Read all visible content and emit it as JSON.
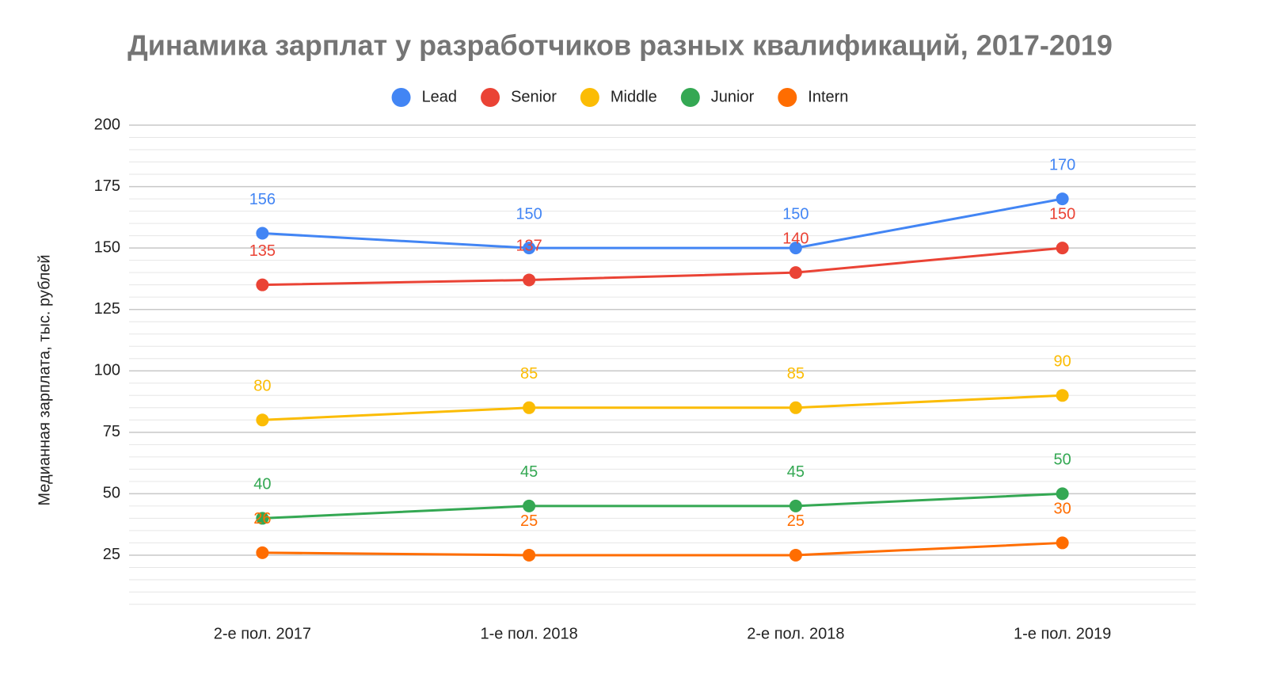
{
  "chart_data": {
    "type": "line",
    "title": "Динамика зарплат у разработчиков разных квалификаций, 2017-2019",
    "y_label": "Медианная зарплата, тыс. рублей",
    "categories": [
      "2-е пол. 2017",
      "1-е пол. 2018",
      "2-е пол. 2018",
      "1-е пол. 2019"
    ],
    "series": [
      {
        "name": "Lead",
        "color": "#4285f4",
        "values": [
          156,
          150,
          150,
          170
        ]
      },
      {
        "name": "Senior",
        "color": "#ea4335",
        "values": [
          135,
          137,
          140,
          150
        ]
      },
      {
        "name": "Middle",
        "color": "#fbbc04",
        "values": [
          80,
          85,
          85,
          90
        ]
      },
      {
        "name": "Junior",
        "color": "#34a853",
        "values": [
          40,
          45,
          45,
          50
        ]
      },
      {
        "name": "Intern",
        "color": "#ff6d01",
        "values": [
          26,
          25,
          25,
          30
        ]
      }
    ],
    "ylim": [
      5,
      200
    ],
    "yticks": [
      25,
      50,
      75,
      100,
      125,
      150,
      175,
      200
    ],
    "minor_grid_step": 5,
    "grid": true,
    "legend": "top",
    "data_labels": true
  }
}
